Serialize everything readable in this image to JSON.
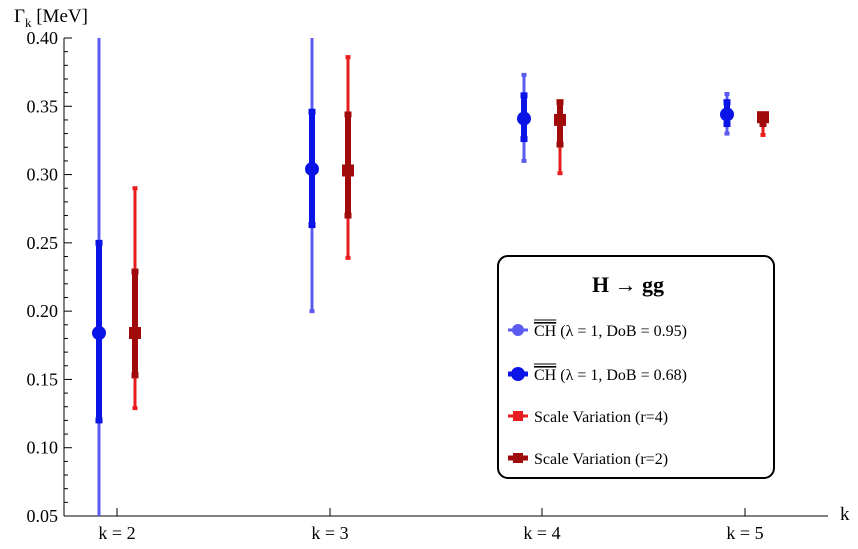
{
  "chart_data": {
    "type": "scatter",
    "plot": "error-bars",
    "ylabel_main": "Γ",
    "ylabel_sub": "k",
    "ylabel_unit": " [MeV]",
    "xlabel": "k",
    "ylim": [
      0.05,
      0.4
    ],
    "yticks": [
      0.05,
      0.1,
      0.15,
      0.2,
      0.25,
      0.3,
      0.35,
      0.4
    ],
    "ytick_labels": [
      "0.05",
      "0.10",
      "0.15",
      "0.20",
      "0.25",
      "0.30",
      "0.35",
      "0.40"
    ],
    "categories": [
      "k = 2",
      "k = 3",
      "k = 4",
      "k = 5"
    ],
    "grid": false,
    "legend": {
      "title": "H → gg",
      "placement": "bottom-right"
    },
    "series": [
      {
        "name": "CH (λ = 1, DoB = 0.95)",
        "name_overline": "CH",
        "name_rest": " (λ = 1,  DoB = 0.95)",
        "color": "#5b5bf0",
        "marker": "circle",
        "offset": -1,
        "thick": false,
        "points": [
          {
            "k": 2,
            "center": 0.184,
            "low": 0.05,
            "high": 0.4
          },
          {
            "k": 3,
            "center": 0.304,
            "low": 0.2,
            "high": 0.4
          },
          {
            "k": 4,
            "center": 0.341,
            "low": 0.31,
            "high": 0.373
          },
          {
            "k": 5,
            "center": 0.344,
            "low": 0.33,
            "high": 0.359
          }
        ]
      },
      {
        "name": "CH (λ = 1, DoB = 0.68)",
        "name_overline": "CH",
        "name_rest": " (λ = 1,  DoB = 0.68)",
        "color": "#0a14e6",
        "marker": "circle",
        "offset": -1,
        "thick": true,
        "points": [
          {
            "k": 2,
            "center": 0.184,
            "low": 0.12,
            "high": 0.25
          },
          {
            "k": 3,
            "center": 0.304,
            "low": 0.263,
            "high": 0.346
          },
          {
            "k": 4,
            "center": 0.341,
            "low": 0.326,
            "high": 0.358
          },
          {
            "k": 5,
            "center": 0.344,
            "low": 0.337,
            "high": 0.353
          }
        ]
      },
      {
        "name": "Scale Variation (r=4)",
        "color": "#e81c1c",
        "marker": "square",
        "offset": 1,
        "thick": false,
        "points": [
          {
            "k": 2,
            "center": 0.184,
            "low": 0.129,
            "high": 0.29
          },
          {
            "k": 3,
            "center": 0.303,
            "low": 0.239,
            "high": 0.386
          },
          {
            "k": 4,
            "center": 0.34,
            "low": 0.301,
            "high": 0.353
          },
          {
            "k": 5,
            "center": 0.342,
            "low": 0.329,
            "high": 0.344
          }
        ]
      },
      {
        "name": "Scale Variation (r=2)",
        "color": "#a00a0a",
        "marker": "square",
        "offset": 1,
        "thick": true,
        "points": [
          {
            "k": 2,
            "center": 0.184,
            "low": 0.153,
            "high": 0.229
          },
          {
            "k": 3,
            "center": 0.303,
            "low": 0.27,
            "high": 0.344
          },
          {
            "k": 4,
            "center": 0.34,
            "low": 0.322,
            "high": 0.353
          },
          {
            "k": 5,
            "center": 0.342,
            "low": 0.337,
            "high": 0.344
          }
        ]
      }
    ]
  }
}
